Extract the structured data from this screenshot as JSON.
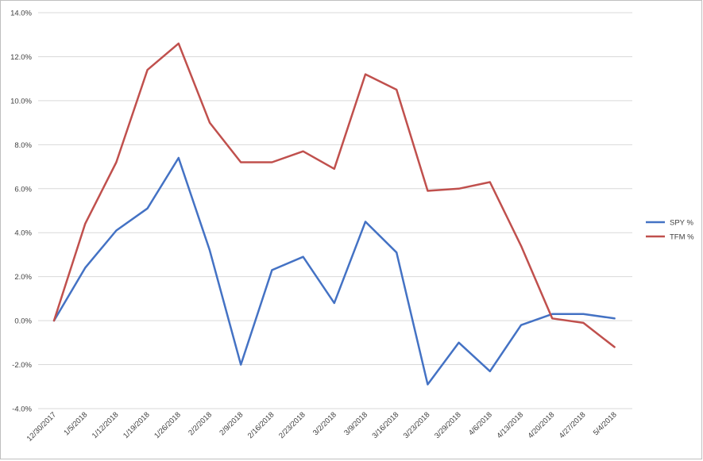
{
  "chart_data": {
    "type": "line",
    "title": "",
    "xlabel": "",
    "ylabel": "",
    "ylim": [
      -4.0,
      14.0
    ],
    "y_ticks": [
      "-4.0%",
      "-2.0%",
      "0.0%",
      "2.0%",
      "4.0%",
      "6.0%",
      "8.0%",
      "10.0%",
      "12.0%",
      "14.0%"
    ],
    "y_tick_values": [
      -4,
      -2,
      0,
      2,
      4,
      6,
      8,
      10,
      12,
      14
    ],
    "grid": true,
    "legend_position": "right",
    "categories": [
      "12/30/2017",
      "1/5/2018",
      "1/12/2018",
      "1/19/2018",
      "1/26/2018",
      "2/2/2018",
      "2/9/2018",
      "2/16/2018",
      "2/23/2018",
      "3/2/2018",
      "3/9/2018",
      "3/16/2018",
      "3/23/2018",
      "3/29/2018",
      "4/6/2018",
      "4/13/2018",
      "4/20/2018",
      "4/27/2018",
      "5/4/2018"
    ],
    "series": [
      {
        "name": "SPY %",
        "color": "#4472c4",
        "values": [
          0.0,
          2.4,
          4.1,
          5.1,
          7.4,
          3.2,
          -2.0,
          2.3,
          2.9,
          0.8,
          4.5,
          3.1,
          -2.9,
          -1.0,
          -2.3,
          -0.2,
          0.3,
          0.3,
          0.1
        ]
      },
      {
        "name": "TFM %",
        "color": "#c0504d",
        "values": [
          0.0,
          4.4,
          7.2,
          11.4,
          12.6,
          9.0,
          7.2,
          7.2,
          7.7,
          6.9,
          11.2,
          10.5,
          5.9,
          6.0,
          6.3,
          3.4,
          0.1,
          -0.1,
          -1.2
        ]
      }
    ]
  }
}
